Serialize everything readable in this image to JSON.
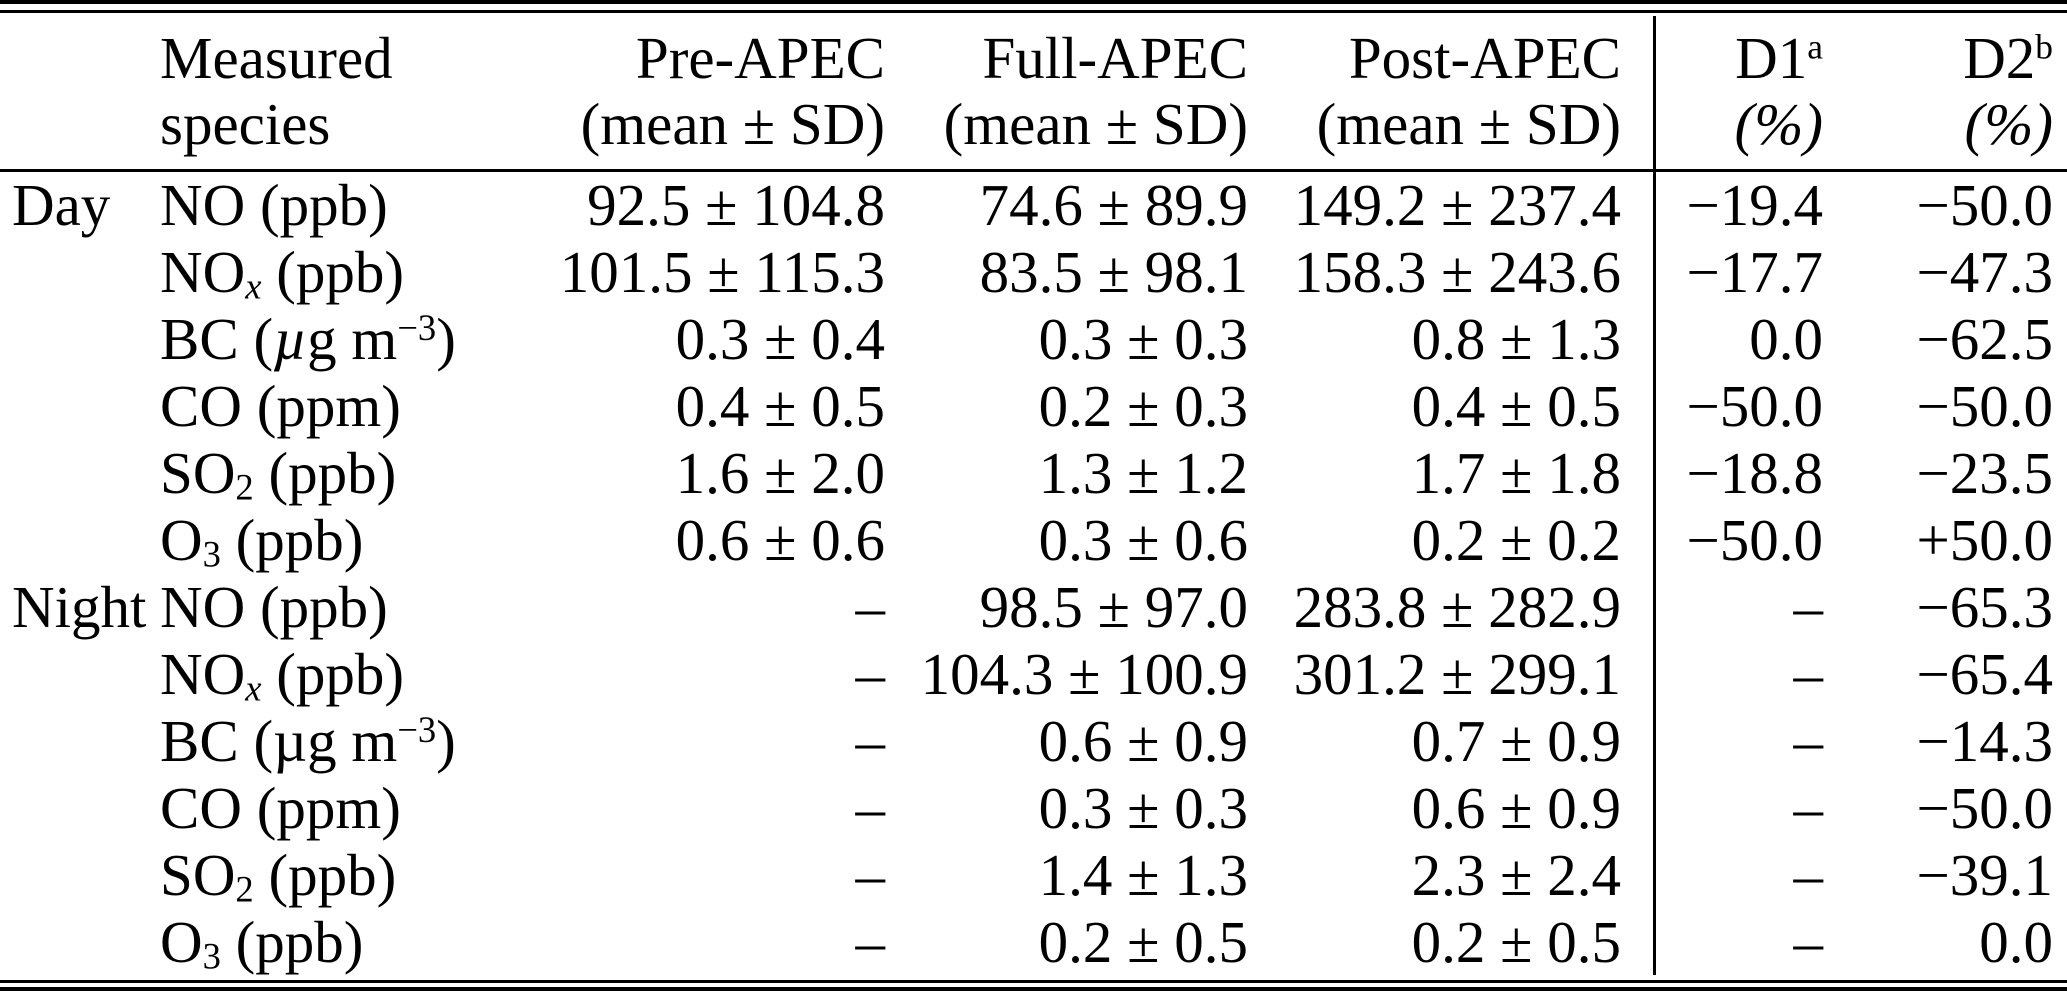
{
  "table": {
    "header": {
      "species": {
        "line1": "Measured",
        "line2": "species"
      },
      "pre": {
        "line1": "Pre-APEC",
        "line2": "(mean ± SD)"
      },
      "full": {
        "line1": "Full-APEC",
        "line2": "(mean ± SD)"
      },
      "post": {
        "line1": "Post-APEC",
        "line2": "(mean ± SD)"
      },
      "d1": {
        "label": "D1",
        "sup": "a",
        "unit": "(%)"
      },
      "d2": {
        "label": "D2",
        "sup": "b",
        "unit": "(%)"
      }
    },
    "rows": [
      {
        "group": "Day",
        "species": [
          {
            "t": "NO (ppb)"
          }
        ],
        "pre": "92.5 ± 104.8",
        "full": "74.6 ± 89.9",
        "post": "149.2 ± 237.4",
        "d1": "−19.4",
        "d2": "−50.0"
      },
      {
        "group": "",
        "species": [
          {
            "t": "NO"
          },
          {
            "t": "x",
            "s": "subi"
          },
          {
            "t": " (ppb)"
          }
        ],
        "pre": "101.5 ± 115.3",
        "full": "83.5 ± 98.1",
        "post": "158.3 ± 243.6",
        "d1": "−17.7",
        "d2": "−47.3"
      },
      {
        "group": "",
        "species": [
          {
            "t": "BC ("
          },
          {
            "t": "µ",
            "s": "i"
          },
          {
            "t": "g m"
          },
          {
            "t": "−3",
            "s": "sup"
          },
          {
            "t": ")"
          }
        ],
        "pre": "0.3 ± 0.4",
        "full": "0.3 ± 0.3",
        "post": "0.8 ± 1.3",
        "d1": "0.0",
        "d2": "−62.5"
      },
      {
        "group": "",
        "species": [
          {
            "t": "CO (ppm)"
          }
        ],
        "pre": "0.4 ± 0.5",
        "full": "0.2 ± 0.3",
        "post": "0.4 ± 0.5",
        "d1": "−50.0",
        "d2": "−50.0"
      },
      {
        "group": "",
        "species": [
          {
            "t": "SO"
          },
          {
            "t": "2",
            "s": "sub"
          },
          {
            "t": " (ppb)"
          }
        ],
        "pre": "1.6 ± 2.0",
        "full": "1.3 ± 1.2",
        "post": "1.7 ± 1.8",
        "d1": "−18.8",
        "d2": "−23.5"
      },
      {
        "group": "",
        "species": [
          {
            "t": "O"
          },
          {
            "t": "3",
            "s": "sub"
          },
          {
            "t": " (ppb)"
          }
        ],
        "pre": "0.6 ± 0.6",
        "full": "0.3 ± 0.6",
        "post": "0.2 ± 0.2",
        "d1": "−50.0",
        "d2": "+50.0"
      },
      {
        "group": "Night",
        "species": [
          {
            "t": "NO (ppb)"
          }
        ],
        "pre": "–",
        "full": "98.5 ± 97.0",
        "post": "283.8 ± 282.9",
        "d1": "–",
        "d2": "−65.3"
      },
      {
        "group": "",
        "species": [
          {
            "t": "NO"
          },
          {
            "t": "x",
            "s": "subi"
          },
          {
            "t": " (ppb)"
          }
        ],
        "pre": "–",
        "full": "104.3 ± 100.9",
        "post": "301.2 ± 299.1",
        "d1": "–",
        "d2": "−65.4"
      },
      {
        "group": "",
        "species": [
          {
            "t": "BC (µg m"
          },
          {
            "t": "−3",
            "s": "sup"
          },
          {
            "t": ")"
          }
        ],
        "pre": "–",
        "full": "0.6 ± 0.9",
        "post": "0.7 ± 0.9",
        "d1": "–",
        "d2": "−14.3"
      },
      {
        "group": "",
        "species": [
          {
            "t": "CO (ppm)"
          }
        ],
        "pre": "–",
        "full": "0.3 ± 0.3",
        "post": "0.6 ± 0.9",
        "d1": "–",
        "d2": "−50.0"
      },
      {
        "group": "",
        "species": [
          {
            "t": "SO"
          },
          {
            "t": "2",
            "s": "sub"
          },
          {
            "t": " (ppb)"
          }
        ],
        "pre": "–",
        "full": "1.4 ± 1.3",
        "post": "2.3 ± 2.4",
        "d1": "–",
        "d2": "−39.1"
      },
      {
        "group": "",
        "species": [
          {
            "t": "O"
          },
          {
            "t": "3",
            "s": "sub"
          },
          {
            "t": " (ppb)"
          }
        ],
        "pre": "–",
        "full": "0.2 ± 0.5",
        "post": "0.2 ± 0.5",
        "d1": "–",
        "d2": "0.0"
      }
    ]
  }
}
